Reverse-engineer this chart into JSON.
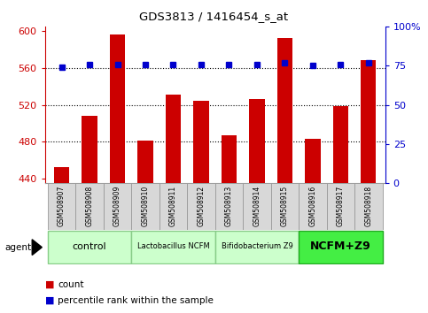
{
  "title": "GDS3813 / 1416454_s_at",
  "samples": [
    "GSM508907",
    "GSM508908",
    "GSM508909",
    "GSM508910",
    "GSM508911",
    "GSM508912",
    "GSM508913",
    "GSM508914",
    "GSM508915",
    "GSM508916",
    "GSM508917",
    "GSM508918"
  ],
  "counts": [
    452,
    508,
    596,
    481,
    531,
    524,
    487,
    526,
    593,
    483,
    519,
    569
  ],
  "percentiles": [
    74,
    76,
    76,
    76,
    76,
    76,
    76,
    76,
    77,
    75,
    76,
    77
  ],
  "bar_color": "#cc0000",
  "dot_color": "#0000cc",
  "ylim_left": [
    435,
    605
  ],
  "ylim_right": [
    0,
    100
  ],
  "yticks_left": [
    440,
    480,
    520,
    560,
    600
  ],
  "yticks_right": [
    0,
    25,
    50,
    75,
    100
  ],
  "groups": [
    {
      "label": "control",
      "start": 0,
      "end": 3,
      "color": "#ccffcc",
      "border_color": "#88cc88",
      "fontsize": 8,
      "fontweight": "normal"
    },
    {
      "label": "Lactobacillus NCFM",
      "start": 3,
      "end": 6,
      "color": "#ccffcc",
      "border_color": "#88cc88",
      "fontsize": 6,
      "fontweight": "normal"
    },
    {
      "label": "Bifidobacterium Z9",
      "start": 6,
      "end": 9,
      "color": "#ccffcc",
      "border_color": "#88cc88",
      "fontsize": 6,
      "fontweight": "normal"
    },
    {
      "label": "NCFM+Z9",
      "start": 9,
      "end": 12,
      "color": "#44ee44",
      "border_color": "#22aa22",
      "fontsize": 9,
      "fontweight": "bold"
    }
  ],
  "legend_count_color": "#cc0000",
  "legend_dot_color": "#0000cc",
  "bar_width": 0.55,
  "background_color": "#ffffff",
  "sample_bg": "#d8d8d8",
  "sample_border": "#999999"
}
